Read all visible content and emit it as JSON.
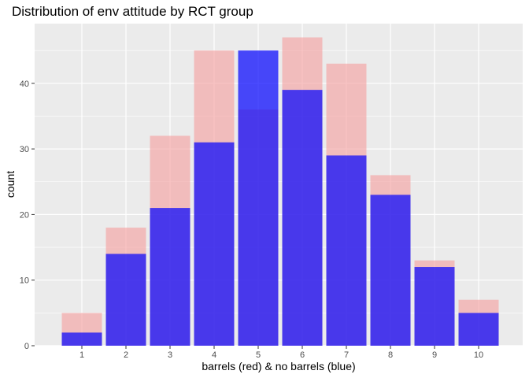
{
  "chart_data": {
    "type": "bar",
    "title": "Distribution of env attitude by RCT group",
    "xlabel": "barrels (red) & no barrels (blue)",
    "ylabel": "count",
    "categories": [
      "1",
      "2",
      "3",
      "4",
      "5",
      "6",
      "7",
      "8",
      "9",
      "10"
    ],
    "series": [
      {
        "color": "#f4a3a3",
        "values": [
          5,
          18,
          32,
          45,
          36,
          47,
          43,
          26,
          13,
          7
        ]
      },
      {
        "color": "#0000ff",
        "values": [
          2,
          14,
          21,
          31,
          45,
          39,
          29,
          23,
          12,
          5
        ]
      }
    ],
    "ylim": [
      0,
      49.1
    ],
    "yticks": [
      0,
      10,
      20,
      30,
      40
    ],
    "grid": true,
    "legend": "none",
    "colors": {
      "panel_background": "#ebebeb",
      "grid": "#ffffff",
      "barrels_fill": "#f4a3a3",
      "no_barrels_fill": "#0000ff"
    }
  }
}
